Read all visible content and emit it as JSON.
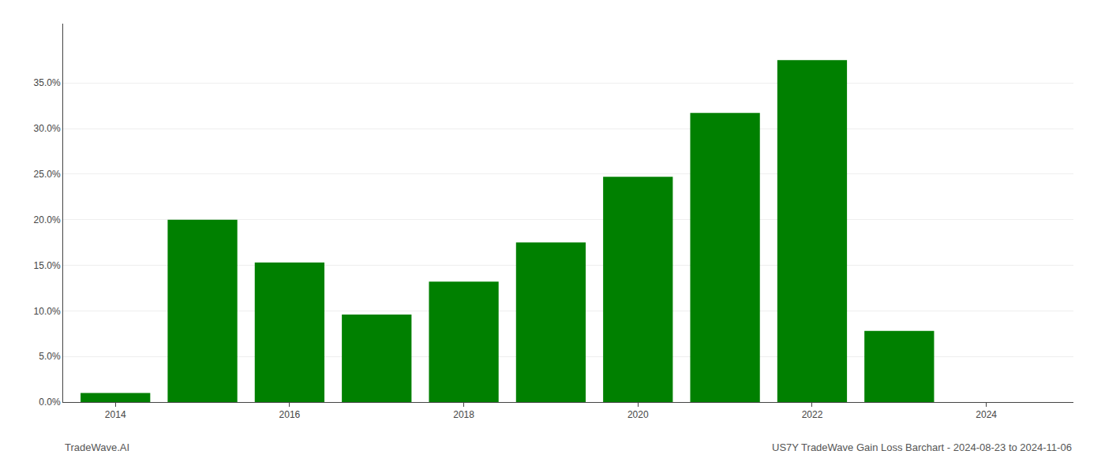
{
  "chart_data": {
    "type": "bar",
    "x": [
      2014,
      2015,
      2016,
      2017,
      2018,
      2019,
      2020,
      2021,
      2022,
      2023
    ],
    "values": [
      0.01,
      0.2,
      0.153,
      0.096,
      0.132,
      0.175,
      0.247,
      0.317,
      0.375,
      0.078
    ],
    "color": "#008000",
    "xlim": [
      2013.4,
      2025.0
    ],
    "xticks": [
      2014,
      2016,
      2018,
      2020,
      2022,
      2024
    ],
    "ylim": [
      0.0,
      0.415
    ],
    "yticks": [
      {
        "value": 0.0,
        "label": "0.0%"
      },
      {
        "value": 0.05,
        "label": "5.0%"
      },
      {
        "value": 0.1,
        "label": "10.0%"
      },
      {
        "value": 0.15,
        "label": "15.0%"
      },
      {
        "value": 0.2,
        "label": "20.0%"
      },
      {
        "value": 0.25,
        "label": "25.0%"
      },
      {
        "value": 0.3,
        "label": "30.0%"
      },
      {
        "value": 0.35,
        "label": "35.0%"
      }
    ],
    "grid": true,
    "annotations": [
      "TradeWave.AI",
      "US7Y TradeWave Gain Loss Barchart - 2024-08-23 to 2024-11-06"
    ]
  }
}
